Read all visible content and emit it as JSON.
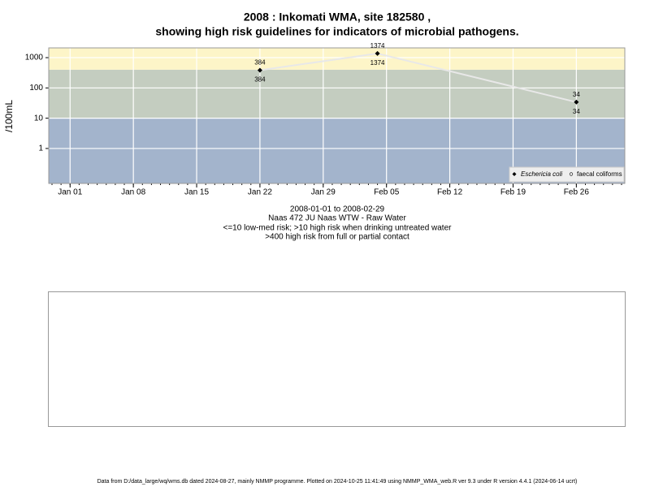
{
  "chart_data": {
    "type": "line",
    "title": [
      "2008 : Inkomati WMA, site 182580 ,",
      "showing high risk guidelines for indicators of microbial pathogens."
    ],
    "subtitle": [
      "2008-01-01 to 2008-02-29",
      "Naas 472 JU Naas WTW - Raw Water",
      "<=10 low-med risk; >10 high risk when drinking untreated water",
      ">400 high risk from full or partial contact"
    ],
    "ylabel": "/100mL",
    "footer": "Data from D:/data_large/wq/wms.db dated 2024-08-27, mainly NMMP programme. Plotted on 2024-10-25 11:41:49 using NMMP_WMA_web.R ver 9.3 under R version 4.4.1 (2024-06-14 ucrt)",
    "x": [
      "2008-01-22",
      "2008-02-04",
      "2008-02-26"
    ],
    "series": [
      {
        "name": "Eschericia coli",
        "color": "#000000",
        "values": [
          384,
          1374,
          34
        ]
      },
      {
        "name": "faecal coliforms",
        "color": "#000000",
        "values": [
          384,
          1374,
          34
        ]
      }
    ],
    "line_color": "#e8e8e8",
    "xlim": [
      "2008-01-01",
      "2008-02-29"
    ],
    "xticks": [
      {
        "value": "2008-01-01",
        "label": "Jan 01"
      },
      {
        "value": "2008-01-08",
        "label": "Jan 08"
      },
      {
        "value": "2008-01-15",
        "label": "Jan 15"
      },
      {
        "value": "2008-01-22",
        "label": "Jan 22"
      },
      {
        "value": "2008-01-29",
        "label": "Jan 29"
      },
      {
        "value": "2008-02-05",
        "label": "Feb 05"
      },
      {
        "value": "2008-02-12",
        "label": "Feb 12"
      },
      {
        "value": "2008-02-19",
        "label": "Feb 19"
      },
      {
        "value": "2008-02-26",
        "label": "Feb 26"
      }
    ],
    "ylim": [
      0.07,
      2100
    ],
    "yticks": [
      1,
      10,
      100,
      1000
    ],
    "log_y": true,
    "grid": true,
    "bands": [
      {
        "from": 0.07,
        "to": 10,
        "color": "#a3b4cc"
      },
      {
        "from": 10,
        "to": 400,
        "color": "#c4cdc0"
      },
      {
        "from": 400,
        "to": 2100,
        "color": "#fdf5c8"
      }
    ],
    "legend": "bottom-right"
  }
}
